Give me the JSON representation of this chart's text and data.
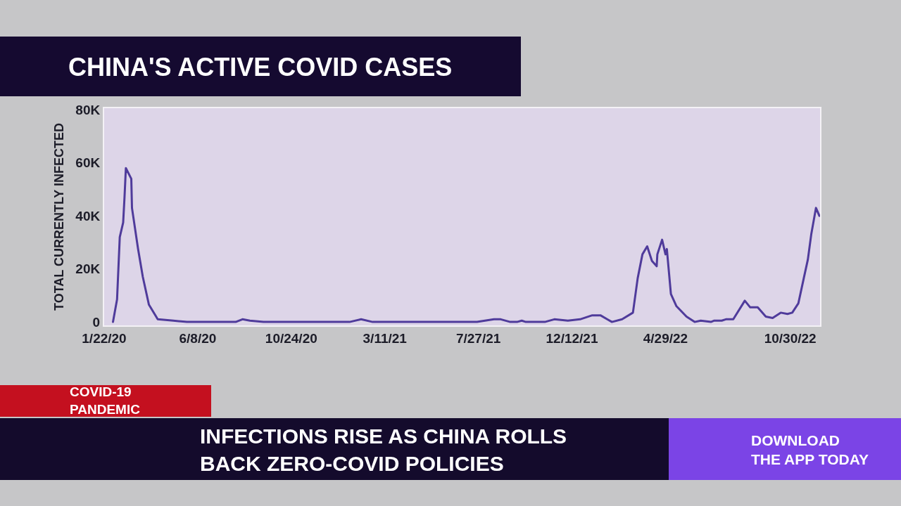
{
  "chart_data": {
    "type": "line",
    "title": "CHINA'S ACTIVE COVID CASES",
    "ylabel": "TOTAL CURRENTLY INFECTED",
    "x": [
      "2020-02-04",
      "2020-02-10",
      "2020-02-14",
      "2020-02-19",
      "2020-02-21",
      "2020-02-23",
      "2020-03-02",
      "2020-03-03",
      "2020-03-12",
      "2020-03-19",
      "2020-03-28",
      "2020-04-10",
      "2020-05-03",
      "2020-05-23",
      "2020-08-03",
      "2020-08-13",
      "2020-08-24",
      "2020-09-13",
      "2020-12-29",
      "2021-01-18",
      "2021-02-04",
      "2021-02-21",
      "2021-07-25",
      "2021-08-19",
      "2021-08-29",
      "2021-09-12",
      "2021-09-22",
      "2021-09-29",
      "2021-10-05",
      "2021-11-02",
      "2021-11-16",
      "2021-12-06",
      "2021-12-24",
      "2022-01-11",
      "2022-01-23",
      "2022-02-02",
      "2022-02-09",
      "2022-02-24",
      "2022-03-12",
      "2022-03-19",
      "2022-03-26",
      "2022-04-02",
      "2022-04-09",
      "2022-04-16",
      "2022-04-17",
      "2022-04-24",
      "2022-04-29",
      "2022-05-01",
      "2022-05-07",
      "2022-05-15",
      "2022-05-30",
      "2022-06-11",
      "2022-06-20",
      "2022-07-05",
      "2022-07-10",
      "2022-07-21",
      "2022-07-27",
      "2022-08-07",
      "2022-08-24",
      "2022-09-01",
      "2022-09-12",
      "2022-09-24",
      "2022-10-04",
      "2022-10-16",
      "2022-10-26",
      "2022-11-02",
      "2022-11-11",
      "2022-11-19",
      "2022-11-25",
      "2022-11-30",
      "2022-12-07",
      "2022-12-12"
    ],
    "series": [
      {
        "color": "#4f3b9b",
        "values": [
          0,
          8500,
          32000,
          37500,
          47000,
          58000,
          54000,
          43000,
          27500,
          17000,
          6500,
          1000,
          500,
          0,
          0,
          1000,
          500,
          0,
          0,
          0,
          1000,
          0,
          0,
          1000,
          1000,
          0,
          0,
          500,
          0,
          0,
          1000,
          500,
          1000,
          2500,
          2500,
          1000,
          0,
          1000,
          3500,
          16500,
          25500,
          28500,
          23000,
          21000,
          25500,
          31000,
          25500,
          27500,
          10500,
          6000,
          2000,
          0,
          500,
          0,
          500,
          500,
          1000,
          1000,
          8000,
          5500,
          5500,
          2000,
          1500,
          3500,
          3000,
          3500,
          7000,
          16500,
          23500,
          33000,
          43000,
          40000
        ]
      }
    ],
    "xlim": [
      "2020-01-22",
      "2022-12-13"
    ],
    "xticks": [
      {
        "value": "2020-01-22",
        "label": "1/22/20"
      },
      {
        "value": "2020-06-08",
        "label": "6/8/20"
      },
      {
        "value": "2020-10-24",
        "label": "10/24/20"
      },
      {
        "value": "2021-03-11",
        "label": "3/11/21"
      },
      {
        "value": "2021-07-27",
        "label": "7/27/21"
      },
      {
        "value": "2021-12-12",
        "label": "12/12/21"
      },
      {
        "value": "2022-04-29",
        "label": "4/29/22"
      },
      {
        "value": "2022-10-30",
        "label": "10/30/22"
      }
    ],
    "ylim": [
      -1300,
      80600
    ],
    "yticks": [
      0,
      {
        "value": 20000,
        "label": "20K"
      },
      {
        "value": 40000,
        "label": "40K"
      },
      {
        "value": 60000,
        "label": "60K"
      },
      {
        "value": 80000,
        "label": "80K"
      }
    ],
    "annotations": [
      "COVID-19\nPANDEMIC",
      "INFECTIONS RISE AS CHINA ROLLS\nBACK ZERO-COVID POLICIES",
      "DOWNLOAD\nTHE APP TODAY"
    ]
  }
}
